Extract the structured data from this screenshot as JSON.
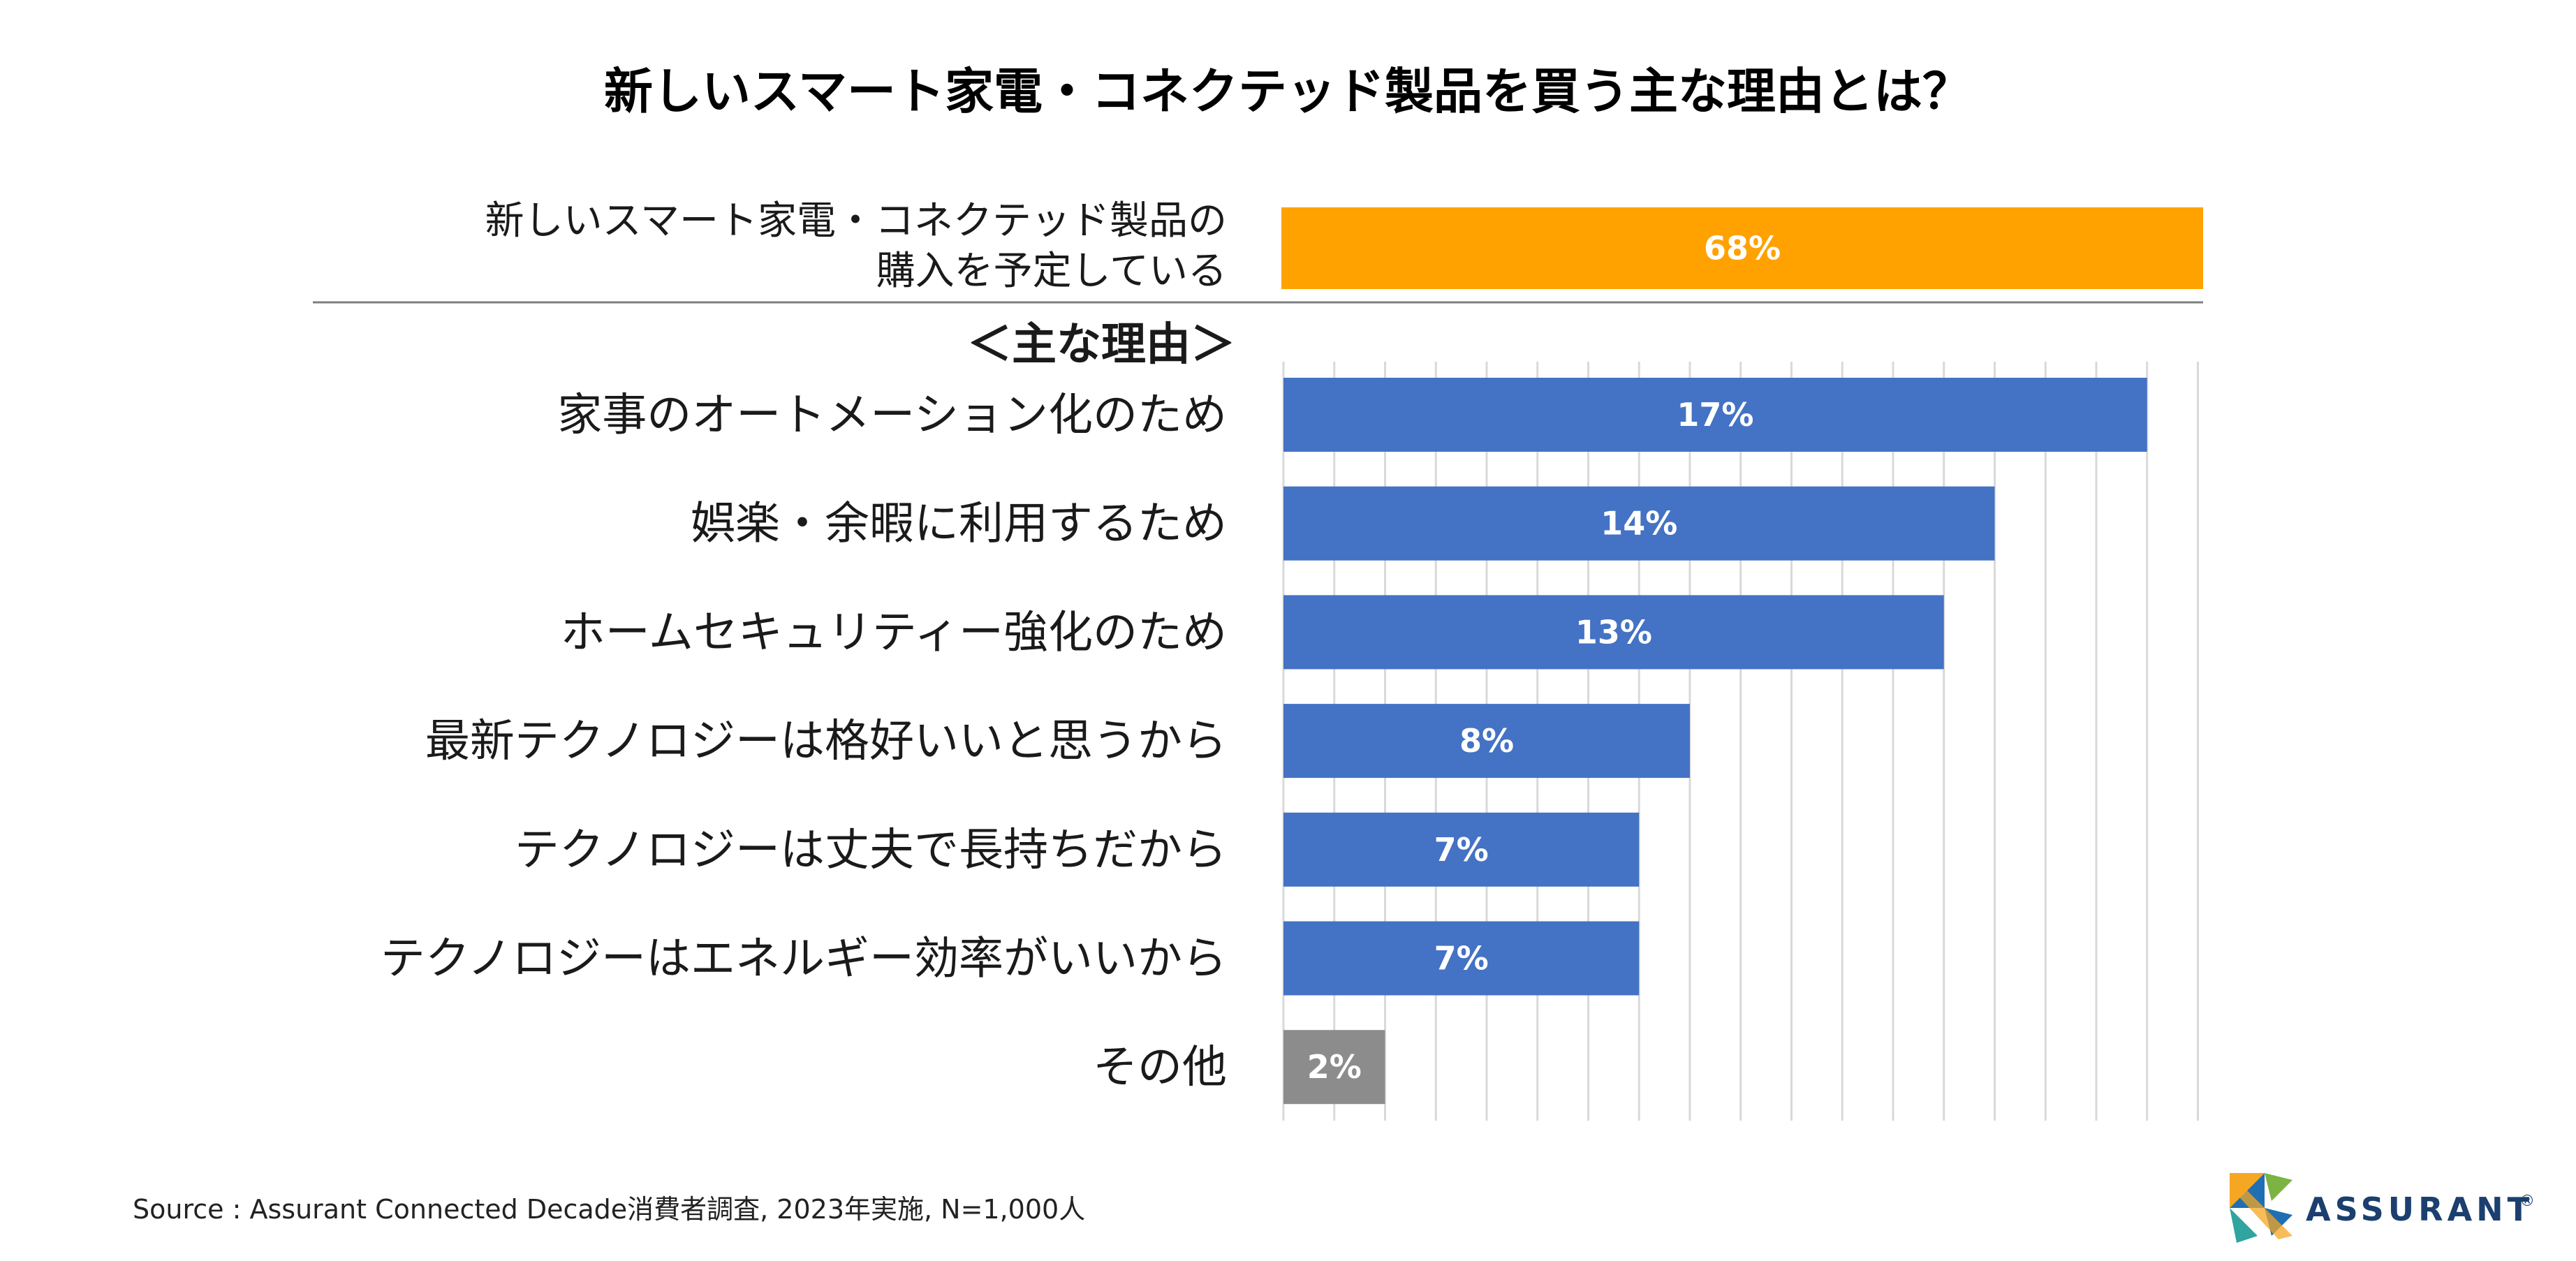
{
  "chart_data": {
    "type": "bar",
    "orientation": "horizontal",
    "title": "新しいスマート家電・コネクテッド製品を買う主な理由とは？",
    "headline": {
      "label_lines": [
        "新しいスマート家電・コネクテッド製品の",
        "購入を予定している"
      ],
      "value": 68,
      "value_label": "68%",
      "color": "#FFA200"
    },
    "subheading": "＜主な理由＞",
    "categories": [
      "家事のオートメーション化のため",
      "娯楽・余暇に利用するため",
      "ホームセキュリティー強化のため",
      "最新テクノロジーは格好いいと思うから",
      "テクノロジーは丈夫で長持ちだから",
      "テクノロジーはエネルギー効率がいいから",
      "その他"
    ],
    "values": [
      17,
      14,
      13,
      8,
      7,
      7,
      2
    ],
    "value_labels": [
      "17%",
      "14%",
      "13%",
      "8%",
      "7%",
      "7%",
      "2%"
    ],
    "colors": [
      "#4472C4",
      "#4472C4",
      "#4472C4",
      "#4472C4",
      "#4472C4",
      "#4472C4",
      "#8C8C8C"
    ],
    "xlim": [
      0,
      18
    ],
    "grid": true,
    "legend": "none"
  },
  "source": "Source : Assurant Connected Decade消費者調査, 2023年実施, N=1,000人",
  "brand": {
    "name": "ASSURANT",
    "mark": "®"
  }
}
